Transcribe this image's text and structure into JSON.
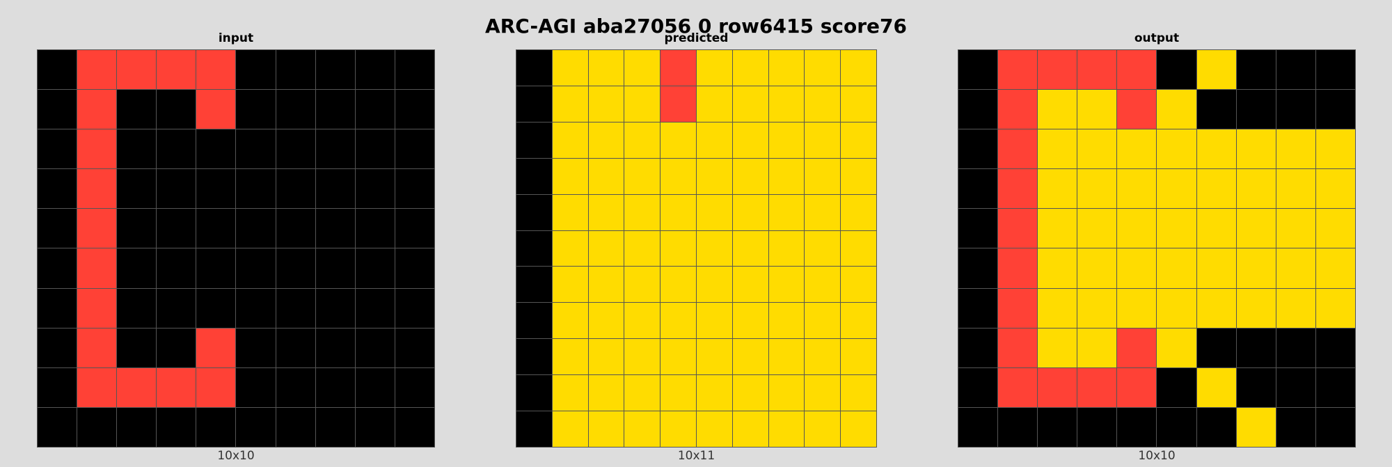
{
  "title": "ARC-AGI aba27056 0 row6415 score76",
  "palette": {
    "0": "#000000",
    "2": "#ff4136",
    "4": "#ffdc00"
  },
  "panels": [
    {
      "id": "input",
      "label": "input",
      "dims": "10x10",
      "grid": [
        [
          0,
          2,
          2,
          2,
          2,
          0,
          0,
          0,
          0,
          0
        ],
        [
          0,
          2,
          0,
          0,
          2,
          0,
          0,
          0,
          0,
          0
        ],
        [
          0,
          2,
          0,
          0,
          0,
          0,
          0,
          0,
          0,
          0
        ],
        [
          0,
          2,
          0,
          0,
          0,
          0,
          0,
          0,
          0,
          0
        ],
        [
          0,
          2,
          0,
          0,
          0,
          0,
          0,
          0,
          0,
          0
        ],
        [
          0,
          2,
          0,
          0,
          0,
          0,
          0,
          0,
          0,
          0
        ],
        [
          0,
          2,
          0,
          0,
          0,
          0,
          0,
          0,
          0,
          0
        ],
        [
          0,
          2,
          0,
          0,
          2,
          0,
          0,
          0,
          0,
          0
        ],
        [
          0,
          2,
          2,
          2,
          2,
          0,
          0,
          0,
          0,
          0
        ],
        [
          0,
          0,
          0,
          0,
          0,
          0,
          0,
          0,
          0,
          0
        ]
      ]
    },
    {
      "id": "predicted",
      "label": "predicted",
      "dims": "10x11",
      "grid": [
        [
          0,
          4,
          4,
          4,
          2,
          4,
          4,
          4,
          4,
          4
        ],
        [
          0,
          4,
          4,
          4,
          2,
          4,
          4,
          4,
          4,
          4
        ],
        [
          0,
          4,
          4,
          4,
          4,
          4,
          4,
          4,
          4,
          4
        ],
        [
          0,
          4,
          4,
          4,
          4,
          4,
          4,
          4,
          4,
          4
        ],
        [
          0,
          4,
          4,
          4,
          4,
          4,
          4,
          4,
          4,
          4
        ],
        [
          0,
          4,
          4,
          4,
          4,
          4,
          4,
          4,
          4,
          4
        ],
        [
          0,
          4,
          4,
          4,
          4,
          4,
          4,
          4,
          4,
          4
        ],
        [
          0,
          4,
          4,
          4,
          4,
          4,
          4,
          4,
          4,
          4
        ],
        [
          0,
          4,
          4,
          4,
          4,
          4,
          4,
          4,
          4,
          4
        ],
        [
          0,
          4,
          4,
          4,
          4,
          4,
          4,
          4,
          4,
          4
        ],
        [
          0,
          4,
          4,
          4,
          4,
          4,
          4,
          4,
          4,
          4
        ]
      ]
    },
    {
      "id": "output",
      "label": "output",
      "dims": "10x10",
      "grid": [
        [
          0,
          2,
          2,
          2,
          2,
          0,
          4,
          0,
          0,
          0
        ],
        [
          0,
          2,
          4,
          4,
          2,
          4,
          0,
          0,
          0,
          0
        ],
        [
          0,
          2,
          4,
          4,
          4,
          4,
          4,
          4,
          4,
          4
        ],
        [
          0,
          2,
          4,
          4,
          4,
          4,
          4,
          4,
          4,
          4
        ],
        [
          0,
          2,
          4,
          4,
          4,
          4,
          4,
          4,
          4,
          4
        ],
        [
          0,
          2,
          4,
          4,
          4,
          4,
          4,
          4,
          4,
          4
        ],
        [
          0,
          2,
          4,
          4,
          4,
          4,
          4,
          4,
          4,
          4
        ],
        [
          0,
          2,
          4,
          4,
          2,
          4,
          0,
          0,
          0,
          0
        ],
        [
          0,
          2,
          2,
          2,
          2,
          0,
          4,
          0,
          0,
          0
        ],
        [
          0,
          0,
          0,
          0,
          0,
          0,
          0,
          4,
          0,
          0
        ]
      ]
    }
  ]
}
